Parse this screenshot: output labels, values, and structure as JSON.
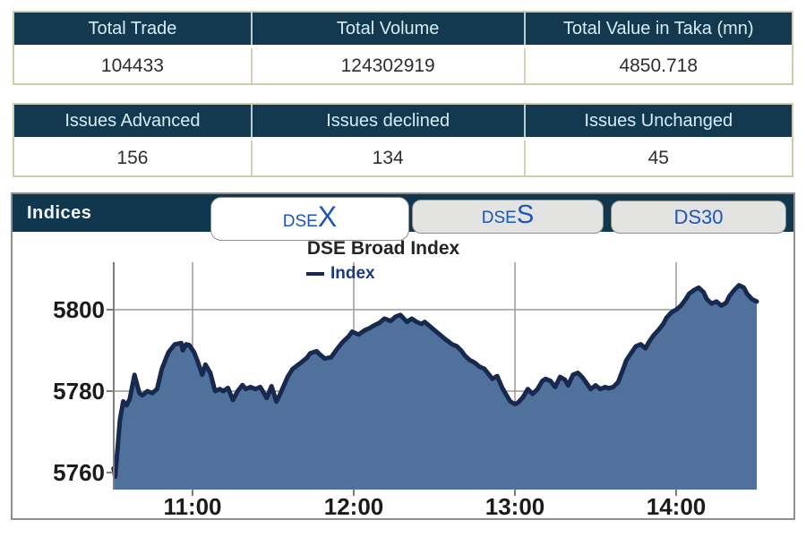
{
  "summary_table_trade": {
    "headers": [
      "Total Trade",
      "Total Volume",
      "Total Value in Taka (mn)"
    ],
    "values": [
      "104433",
      "124302919",
      "4850.718"
    ]
  },
  "summary_table_issues": {
    "headers": [
      "Issues Advanced",
      "Issues declined",
      "Issues Unchanged"
    ],
    "values": [
      "156",
      "134",
      "45"
    ]
  },
  "indices_panel": {
    "title": "Indices",
    "tabs": [
      {
        "small": "DSE",
        "big": "X",
        "active": true
      },
      {
        "small": "DSE",
        "big": "S",
        "active": false
      },
      {
        "small": "DS30",
        "big": "",
        "active": false
      }
    ]
  },
  "chart_data": {
    "type": "area",
    "title": "DSE Broad Index",
    "legend": [
      "Index"
    ],
    "legend_position": "top",
    "grid": true,
    "x_ticks": [
      {
        "label": "11:00",
        "hour": 11
      },
      {
        "label": "12:00",
        "hour": 12
      },
      {
        "label": "13:00",
        "hour": 13
      },
      {
        "label": "14:00",
        "hour": 14
      }
    ],
    "y_ticks": [
      5760,
      5780,
      5800
    ],
    "grid_values": [
      5780,
      5800
    ],
    "x_range_hours": [
      10.51,
      14.5
    ],
    "y_range": [
      5756,
      5812
    ],
    "colors": {
      "line": "#17294e",
      "fill": "#4f719b",
      "grid": "#9a9a9a",
      "axis": "#7d7d7d",
      "tick_label": "#1b1b1b"
    },
    "series": [
      {
        "name": "Index",
        "points": [
          [
            10.51,
            5761
          ],
          [
            10.52,
            5759
          ],
          [
            10.55,
            5773
          ],
          [
            10.57,
            5777.5
          ],
          [
            10.59,
            5776.5
          ],
          [
            10.61,
            5778
          ],
          [
            10.64,
            5784
          ],
          [
            10.67,
            5779.5
          ],
          [
            10.69,
            5779
          ],
          [
            10.72,
            5780
          ],
          [
            10.75,
            5779.5
          ],
          [
            10.78,
            5780.5
          ],
          [
            10.81,
            5785.5
          ],
          [
            10.85,
            5789.5
          ],
          [
            10.89,
            5791.5
          ],
          [
            10.93,
            5791.8
          ],
          [
            10.94,
            5790
          ],
          [
            10.96,
            5791.5
          ],
          [
            10.98,
            5791.3
          ],
          [
            11.01,
            5789.5
          ],
          [
            11.03,
            5787.5
          ],
          [
            11.06,
            5784
          ],
          [
            11.08,
            5786.5
          ],
          [
            11.11,
            5784.5
          ],
          [
            11.14,
            5780
          ],
          [
            11.17,
            5780.5
          ],
          [
            11.19,
            5780
          ],
          [
            11.22,
            5780.8
          ],
          [
            11.25,
            5777.8
          ],
          [
            11.28,
            5780
          ],
          [
            11.31,
            5781.5
          ],
          [
            11.33,
            5780.5
          ],
          [
            11.36,
            5781
          ],
          [
            11.39,
            5780.5
          ],
          [
            11.42,
            5781
          ],
          [
            11.46,
            5778.3
          ],
          [
            11.49,
            5781.2
          ],
          [
            11.52,
            5777.4
          ],
          [
            11.54,
            5779
          ],
          [
            11.57,
            5781.7
          ],
          [
            11.59,
            5783.5
          ],
          [
            11.62,
            5785.4
          ],
          [
            11.65,
            5786.3
          ],
          [
            11.68,
            5787.2
          ],
          [
            11.71,
            5788.2
          ],
          [
            11.73,
            5789.3
          ],
          [
            11.77,
            5789.8
          ],
          [
            11.79,
            5789
          ],
          [
            11.82,
            5788
          ],
          [
            11.86,
            5788.3
          ],
          [
            11.89,
            5790
          ],
          [
            11.93,
            5792
          ],
          [
            11.97,
            5793.5
          ],
          [
            11.99,
            5794.6
          ],
          [
            12.03,
            5793.9
          ],
          [
            12.07,
            5795
          ],
          [
            12.1,
            5795.5
          ],
          [
            12.12,
            5796
          ],
          [
            12.16,
            5796.8
          ],
          [
            12.19,
            5797.8
          ],
          [
            12.23,
            5797.2
          ],
          [
            12.26,
            5798.3
          ],
          [
            12.29,
            5798.7
          ],
          [
            12.33,
            5797
          ],
          [
            12.36,
            5797.8
          ],
          [
            12.39,
            5797
          ],
          [
            12.42,
            5796.5
          ],
          [
            12.44,
            5797
          ],
          [
            12.47,
            5796
          ],
          [
            12.5,
            5795
          ],
          [
            12.53,
            5794
          ],
          [
            12.56,
            5793
          ],
          [
            12.58,
            5792.4
          ],
          [
            12.61,
            5791.5
          ],
          [
            12.64,
            5791
          ],
          [
            12.67,
            5789.8
          ],
          [
            12.69,
            5788.7
          ],
          [
            12.72,
            5787.6
          ],
          [
            12.75,
            5787
          ],
          [
            12.78,
            5786
          ],
          [
            12.81,
            5785.5
          ],
          [
            12.83,
            5784.5
          ],
          [
            12.86,
            5783
          ],
          [
            12.89,
            5783.7
          ],
          [
            12.92,
            5780.9
          ],
          [
            12.94,
            5779.5
          ],
          [
            12.97,
            5777.5
          ],
          [
            13,
            5776.8
          ],
          [
            13.02,
            5777.2
          ],
          [
            13.05,
            5778.5
          ],
          [
            13.08,
            5780.5
          ],
          [
            13.11,
            5779.3
          ],
          [
            13.14,
            5780.5
          ],
          [
            13.17,
            5782.5
          ],
          [
            13.19,
            5783
          ],
          [
            13.22,
            5782.5
          ],
          [
            13.25,
            5781
          ],
          [
            13.28,
            5783.5
          ],
          [
            13.31,
            5782.8
          ],
          [
            13.33,
            5781.4
          ],
          [
            13.36,
            5784
          ],
          [
            13.39,
            5784.5
          ],
          [
            13.42,
            5783.3
          ],
          [
            13.44,
            5782.2
          ],
          [
            13.47,
            5780.5
          ],
          [
            13.5,
            5781.4
          ],
          [
            13.53,
            5780.5
          ],
          [
            13.56,
            5781
          ],
          [
            13.58,
            5780.7
          ],
          [
            13.61,
            5781
          ],
          [
            13.64,
            5782.2
          ],
          [
            13.67,
            5785.3
          ],
          [
            13.69,
            5787.5
          ],
          [
            13.72,
            5789.3
          ],
          [
            13.75,
            5791
          ],
          [
            13.78,
            5791.5
          ],
          [
            13.81,
            5790.5
          ],
          [
            13.83,
            5792
          ],
          [
            13.86,
            5793.7
          ],
          [
            13.89,
            5795
          ],
          [
            13.92,
            5796.5
          ],
          [
            13.94,
            5798
          ],
          [
            13.97,
            5799.3
          ],
          [
            14,
            5800
          ],
          [
            14.03,
            5801
          ],
          [
            14.06,
            5802.6
          ],
          [
            14.08,
            5803.9
          ],
          [
            14.11,
            5804.8
          ],
          [
            14.14,
            5805.4
          ],
          [
            14.17,
            5804.3
          ],
          [
            14.19,
            5802.6
          ],
          [
            14.22,
            5801.5
          ],
          [
            14.25,
            5802
          ],
          [
            14.28,
            5801
          ],
          [
            14.31,
            5801.7
          ],
          [
            14.33,
            5803.3
          ],
          [
            14.36,
            5804.8
          ],
          [
            14.39,
            5806
          ],
          [
            14.42,
            5805.4
          ],
          [
            14.44,
            5803.9
          ],
          [
            14.47,
            5802.6
          ],
          [
            14.5,
            5802
          ]
        ]
      }
    ]
  }
}
